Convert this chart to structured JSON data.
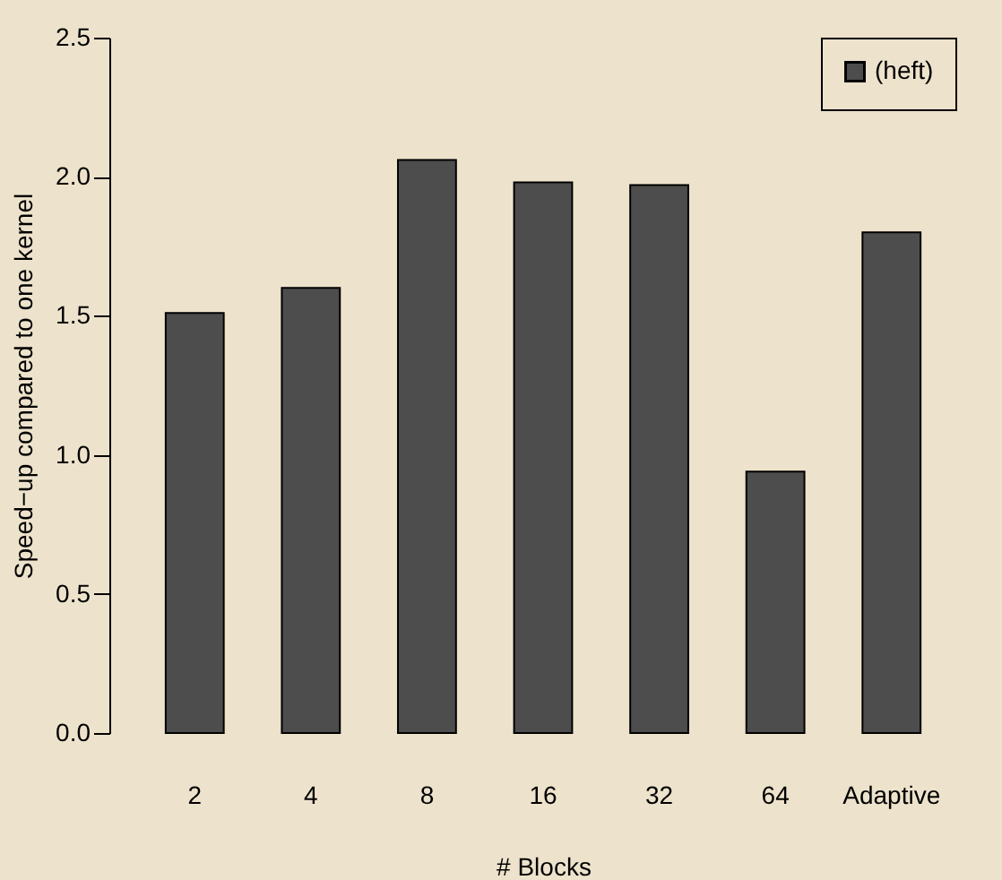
{
  "chart_data": {
    "type": "bar",
    "xlabel": "# Blocks",
    "ylabel": "Speed−up compared to one kernel",
    "categories": [
      "2",
      "4",
      "8",
      "16",
      "32",
      "64",
      "Adaptive"
    ],
    "series": [
      {
        "name": "(heft)",
        "color": "#4d4d4d",
        "values": [
          1.51,
          1.6,
          2.06,
          1.98,
          1.97,
          0.94,
          1.8
        ]
      }
    ],
    "ylim": [
      0,
      2.5
    ],
    "yticks": [
      {
        "value": 0,
        "label": "0.0"
      },
      {
        "value": 0.5,
        "label": "0.5"
      },
      {
        "value": 1,
        "label": "1.0"
      },
      {
        "value": 1.5,
        "label": "1.5"
      },
      {
        "value": 2,
        "label": "2.0"
      },
      {
        "value": 2.5,
        "label": "2.5"
      }
    ],
    "grid": false,
    "legend": "top right"
  }
}
